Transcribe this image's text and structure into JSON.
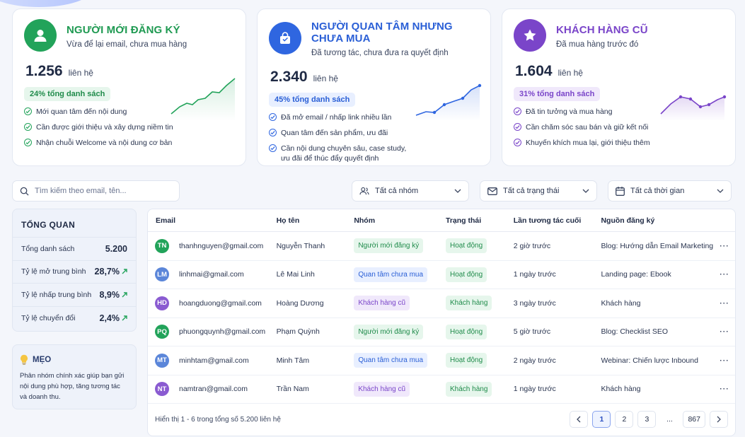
{
  "cards": [
    {
      "title": "NGƯỜI MỚI ĐĂNG KÝ",
      "subtitle": "Vừa để lại email, chưa mua hàng",
      "count": "1.256",
      "unit": "liên hệ",
      "pill": "24% tổng danh sách",
      "icon": "user-icon",
      "color": "#22a35a",
      "bullets": [
        "Mới quan tâm đến nội dung",
        "Cần được giới thiệu và xây dựng niềm tin",
        "Nhận chuỗi Welcome và nội dung cơ bản"
      ]
    },
    {
      "title": "NGƯỜI QUAN TÂM NHƯNG CHƯA MUA",
      "subtitle": "Đã tương tác, chưa đưa ra quyết định",
      "count": "2.340",
      "unit": "liên hệ",
      "pill": "45% tổng danh sách",
      "icon": "shopping-bag-icon",
      "color": "#2f66e0",
      "bullets": [
        "Đã mở email / nhấp link nhiều lần",
        "Quan tâm đến sản phẩm, ưu đãi",
        "Cần nội dung chuyên sâu, case study,\nưu đãi để thúc đẩy quyết định"
      ]
    },
    {
      "title": "KHÁCH HÀNG CŨ",
      "subtitle": "Đã mua hàng trước đó",
      "count": "1.604",
      "unit": "liên hệ",
      "pill": "31% tổng danh sách",
      "icon": "star-icon",
      "color": "#7a45c9",
      "bullets": [
        "Đã tin tưởng và mua hàng",
        "Cần chăm sóc sau bán và giữ kết nối",
        "Khuyến khích mua lại, giới thiệu thêm"
      ]
    }
  ],
  "search": {
    "placeholder": "Tìm kiếm theo email, tên..."
  },
  "filters": {
    "group": "Tất cả nhóm",
    "status": "Tất cả trạng thái",
    "time": "Tất cả thời gian"
  },
  "overview": {
    "title": "TỔNG QUAN",
    "rows": [
      {
        "label": "Tổng danh sách",
        "value": "5.200"
      },
      {
        "label": "Tỷ lệ mở trung bình",
        "value": "28,7%"
      },
      {
        "label": "Tỷ lệ nhấp trung bình",
        "value": "8,9%"
      },
      {
        "label": "Tỷ lệ chuyển đổi",
        "value": "2,4%"
      }
    ]
  },
  "tips": {
    "title": "MẸO",
    "text": "Phân nhóm chính xác giúp bạn gửi nội dung phù hợp, tăng tương tác và doanh thu."
  },
  "table": {
    "headers": {
      "email": "Email",
      "name": "Họ tên",
      "group": "Nhóm",
      "status": "Trạng thái",
      "last": "Lần tương tác cuối",
      "source": "Nguồn đăng ký"
    },
    "rows": [
      {
        "initials": "TN",
        "avatar_color": "#22a35a",
        "email": "thanhnguyen@gmail.com",
        "name": "Nguyễn Thanh",
        "group": "Người mới đăng ký",
        "group_type": "new",
        "status": "Hoạt động",
        "last": "2 giờ trước",
        "source": "Blog: Hướng dẫn Email Marketing"
      },
      {
        "initials": "LM",
        "avatar_color": "#5b86d9",
        "email": "linhmai@gmail.com",
        "name": "Lê Mai Linh",
        "group": "Quan tâm chưa mua",
        "group_type": "interest",
        "status": "Hoạt động",
        "last": "1 ngày trước",
        "source": "Landing page: Ebook"
      },
      {
        "initials": "HD",
        "avatar_color": "#8a5bd1",
        "email": "hoangduong@gmail.com",
        "name": "Hoàng Dương",
        "group": "Khách hàng cũ",
        "group_type": "old",
        "status": "Khách hàng",
        "last": "3 ngày trước",
        "source": "Khách hàng"
      },
      {
        "initials": "PQ",
        "avatar_color": "#22a35a",
        "email": "phuongquynh@gmail.com",
        "name": "Phạm Quỳnh",
        "group": "Người mới đăng ký",
        "group_type": "new",
        "status": "Hoạt động",
        "last": "5 giờ trước",
        "source": "Blog: Checklist SEO"
      },
      {
        "initials": "MT",
        "avatar_color": "#5b86d9",
        "email": "minhtam@gmail.com",
        "name": "Minh Tâm",
        "group": "Quan tâm chưa mua",
        "group_type": "interest",
        "status": "Hoạt động",
        "last": "2 ngày trước",
        "source": "Webinar: Chiến lược Inbound"
      },
      {
        "initials": "NT",
        "avatar_color": "#8a5bd1",
        "email": "namtran@gmail.com",
        "name": "Trần Nam",
        "group": "Khách hàng cũ",
        "group_type": "old",
        "status": "Khách hàng",
        "last": "1 ngày trước",
        "source": "Khách hàng"
      }
    ],
    "footer": "Hiển thị 1 - 6 trong tổng số 5.200 liên hệ",
    "pages": [
      "1",
      "2",
      "3",
      "...",
      "867"
    ]
  }
}
